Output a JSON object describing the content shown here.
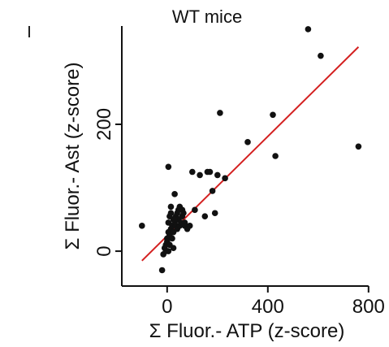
{
  "chart_data": {
    "type": "scatter",
    "title": "WT mice",
    "xlabel": "Σ Fluor.- ATP (z-score)",
    "ylabel": "Σ Fluor.- Ast (z-score)",
    "xlim": [
      -180,
      820
    ],
    "ylim": [
      -55,
      355
    ],
    "x_ticks": [
      0,
      400,
      800
    ],
    "x_tick_labels": [
      "0",
      "400",
      "800"
    ],
    "y_ticks": [
      0,
      200
    ],
    "y_tick_labels": [
      "0",
      "200"
    ],
    "grid": false,
    "colors": {
      "points": "#111111",
      "fit_line": "#d42020",
      "axes": "#111111"
    },
    "series": [
      {
        "x": [
          -100,
          -20,
          -15,
          -10,
          -5,
          -5,
          0,
          0,
          5,
          5,
          10,
          10,
          15,
          15,
          15,
          20,
          20,
          25,
          25,
          30,
          30,
          35,
          35,
          40,
          40,
          45,
          45,
          50,
          50,
          55,
          60,
          60,
          65,
          70,
          70,
          80,
          90,
          100,
          110,
          130,
          150,
          160,
          170,
          180,
          190,
          200,
          210,
          230,
          320,
          420,
          430,
          560,
          610,
          760,
          5,
          10,
          25,
          30,
          5
        ],
        "y": [
          40,
          -30,
          -5,
          5,
          0,
          10,
          20,
          15,
          30,
          45,
          25,
          55,
          35,
          60,
          70,
          20,
          40,
          50,
          30,
          45,
          90,
          55,
          40,
          60,
          35,
          65,
          50,
          70,
          40,
          45,
          55,
          65,
          60,
          45,
          40,
          35,
          40,
          125,
          65,
          120,
          55,
          125,
          125,
          95,
          60,
          120,
          218,
          115,
          172,
          215,
          150,
          350,
          308,
          165,
          133,
          10,
          5,
          50,
          0
        ]
      }
    ],
    "fit_line": {
      "x": [
        -100,
        760
      ],
      "y": [
        -15,
        322
      ]
    }
  }
}
